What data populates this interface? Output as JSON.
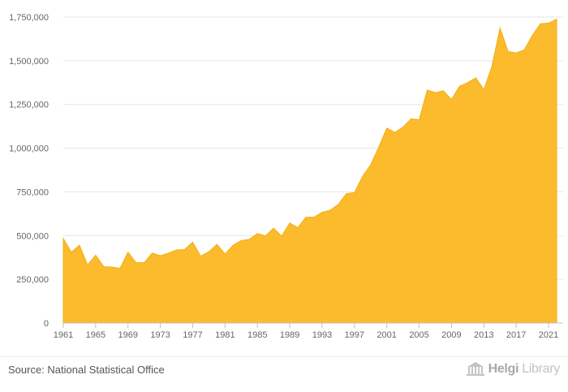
{
  "chart_data": {
    "type": "area",
    "title": "",
    "xlabel": "",
    "ylabel": "",
    "x": [
      1961,
      1962,
      1963,
      1964,
      1965,
      1966,
      1967,
      1968,
      1969,
      1970,
      1971,
      1972,
      1973,
      1974,
      1975,
      1976,
      1977,
      1978,
      1979,
      1980,
      1981,
      1982,
      1983,
      1984,
      1985,
      1986,
      1987,
      1988,
      1989,
      1990,
      1991,
      1992,
      1993,
      1994,
      1995,
      1996,
      1997,
      1998,
      1999,
      2000,
      2001,
      2002,
      2003,
      2004,
      2005,
      2006,
      2007,
      2008,
      2009,
      2010,
      2011,
      2012,
      2013,
      2014,
      2015,
      2016,
      2017,
      2018,
      2019,
      2020,
      2021,
      2022
    ],
    "series": [
      {
        "values": [
          483000,
          405000,
          445000,
          332000,
          388000,
          322000,
          320000,
          312000,
          405000,
          345000,
          345000,
          400000,
          385000,
          400000,
          418000,
          420000,
          462000,
          382000,
          408000,
          450000,
          395000,
          445000,
          472000,
          478000,
          512000,
          498000,
          543000,
          497000,
          572000,
          545000,
          605000,
          605000,
          633000,
          645000,
          678000,
          740000,
          745000,
          838000,
          905000,
          1005000,
          1115000,
          1090000,
          1120000,
          1168000,
          1162000,
          1332000,
          1318000,
          1328000,
          1278000,
          1355000,
          1375000,
          1402000,
          1335000,
          1468000,
          1688000,
          1552000,
          1545000,
          1562000,
          1645000,
          1712000,
          1715000,
          1738000
        ]
      }
    ],
    "color": "#fbbb2c",
    "xticks": [
      "1961",
      "1965",
      "1969",
      "1973",
      "1977",
      "1981",
      "1985",
      "1989",
      "1993",
      "1997",
      "2001",
      "2005",
      "2009",
      "2013",
      "2017",
      "2021"
    ],
    "yticks": [
      "0",
      "250,000",
      "500,000",
      "750,000",
      "1,000,000",
      "1,250,000",
      "1,500,000",
      "1,750,000"
    ],
    "ylim": [
      0,
      1750000
    ],
    "xlim": [
      1961,
      2022
    ],
    "grid": true,
    "legend": "none"
  },
  "footer": {
    "source": "Source: National Statistical Office",
    "brand_main": "Helgi",
    "brand_sub": "Library"
  }
}
